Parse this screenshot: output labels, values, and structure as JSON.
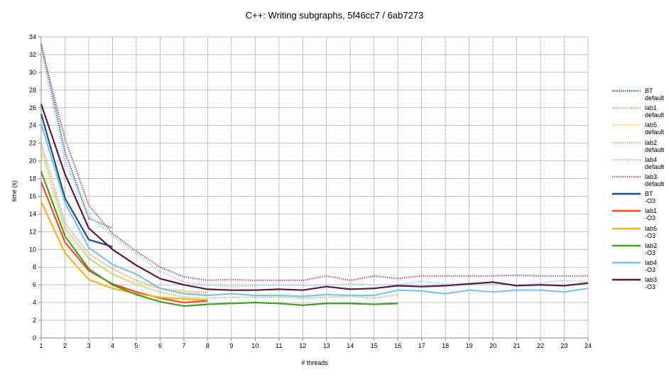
{
  "chart_data": {
    "type": "line",
    "title": "C++: Writing subgraphs, 5f46cc7 / 6ab7273",
    "xlabel": "# threads",
    "ylabel": "time (s)",
    "xlim": [
      1,
      24
    ],
    "ylim": [
      0,
      34
    ],
    "x_ticks": [
      1,
      2,
      3,
      4,
      5,
      6,
      7,
      8,
      9,
      10,
      11,
      12,
      13,
      14,
      15,
      16,
      17,
      18,
      19,
      20,
      21,
      22,
      23,
      24
    ],
    "y_ticks": [
      0,
      2,
      4,
      6,
      8,
      10,
      12,
      14,
      16,
      18,
      20,
      22,
      24,
      26,
      28,
      30,
      32,
      34
    ],
    "grid": true,
    "legend_position": "right",
    "series": [
      {
        "name_line1": "BT",
        "name_line2": "default",
        "color": "#4a6fa5",
        "style": "dotted",
        "x": [
          1,
          2,
          3,
          4
        ],
        "y": [
          33.2,
          21.0,
          13.5,
          12.4
        ]
      },
      {
        "name_line1": "lab1",
        "name_line2": "default",
        "color": "#f4a582",
        "style": "dotted",
        "x": [
          1,
          2,
          3,
          4,
          5,
          6,
          7,
          8
        ],
        "y": [
          22.0,
          13.0,
          9.5,
          7.8,
          6.5,
          5.6,
          5.3,
          5.1
        ]
      },
      {
        "name_line1": "lab5",
        "name_line2": "default",
        "color": "#f9d66a",
        "style": "dotted",
        "x": [
          1,
          2,
          3,
          4,
          5,
          6,
          7,
          8
        ],
        "y": [
          21.0,
          12.0,
          9.0,
          7.2,
          6.2,
          5.6,
          5.2,
          5.0
        ]
      },
      {
        "name_line1": "lab2",
        "name_line2": "default",
        "color": "#a6d18a",
        "style": "dotted",
        "x": [
          1,
          2,
          3,
          4,
          5,
          6,
          7,
          8,
          9,
          10,
          11,
          12,
          13,
          14,
          15,
          16
        ],
        "y": [
          21.5,
          12.5,
          9.0,
          7.2,
          6.0,
          5.2,
          4.6,
          4.5,
          4.6,
          4.6,
          4.6,
          4.5,
          4.6,
          4.7,
          4.5,
          4.9
        ]
      },
      {
        "name_line1": "lab4",
        "name_line2": "default",
        "color": "#a8d4f0",
        "style": "dotted",
        "x": [
          1,
          2,
          3,
          4,
          5,
          6,
          7,
          8,
          9,
          10,
          11,
          12,
          13,
          14,
          15,
          16,
          17,
          18,
          19,
          20,
          21,
          22,
          23,
          24
        ],
        "y": [
          32.5,
          20.0,
          13.8,
          11.5,
          9.5,
          7.5,
          6.3,
          6.0,
          5.8,
          5.9,
          6.0,
          5.9,
          6.0,
          6.1,
          6.0,
          6.0,
          6.4,
          6.1,
          6.2,
          6.1,
          6.0,
          6.2,
          6.5,
          6.3
        ]
      },
      {
        "name_line1": "lab3",
        "name_line2": "default",
        "color": "#b56576",
        "style": "dotted",
        "x": [
          1,
          2,
          3,
          4,
          5,
          6,
          7,
          8,
          9,
          10,
          11,
          12,
          13,
          14,
          15,
          16,
          17,
          18,
          19,
          20,
          21,
          22,
          23,
          24
        ],
        "y": [
          33.0,
          22.5,
          15.0,
          11.8,
          9.8,
          8.0,
          6.9,
          6.5,
          6.6,
          6.5,
          6.5,
          6.5,
          7.0,
          6.5,
          7.0,
          6.7,
          7.0,
          7.0,
          7.0,
          7.0,
          7.1,
          7.0,
          7.0,
          7.0
        ]
      },
      {
        "name_line1": "BT",
        "name_line2": "-O3",
        "color": "#1f4e89",
        "style": "solid",
        "x": [
          1,
          2,
          3,
          4
        ],
        "y": [
          25.3,
          15.8,
          11.1,
          10.3
        ]
      },
      {
        "name_line1": "lab1",
        "name_line2": "-O3",
        "color": "#f04e23",
        "style": "solid",
        "x": [
          1,
          2,
          3,
          4,
          5,
          6,
          7,
          8
        ],
        "y": [
          17.6,
          10.8,
          7.6,
          6.1,
          5.2,
          4.5,
          4.0,
          4.2
        ]
      },
      {
        "name_line1": "lab5",
        "name_line2": "-O3",
        "color": "#f2b824",
        "style": "solid",
        "x": [
          1,
          2,
          3,
          4,
          5,
          6,
          7,
          8
        ],
        "y": [
          15.4,
          9.6,
          6.6,
          5.6,
          5.0,
          4.6,
          4.4,
          4.3
        ]
      },
      {
        "name_line1": "lab2",
        "name_line2": "-O3",
        "color": "#4b9b2a",
        "style": "solid",
        "x": [
          1,
          2,
          3,
          4,
          5,
          6,
          7,
          8,
          9,
          10,
          11,
          12,
          13,
          14,
          15,
          16
        ],
        "y": [
          18.8,
          11.5,
          7.8,
          6.0,
          4.9,
          4.1,
          3.6,
          3.8,
          3.9,
          4.0,
          3.9,
          3.7,
          3.9,
          3.9,
          3.8,
          3.9
        ]
      },
      {
        "name_line1": "lab4",
        "name_line2": "-O3",
        "color": "#7ec4ea",
        "style": "solid",
        "x": [
          1,
          2,
          3,
          4,
          5,
          6,
          7,
          8,
          9,
          10,
          11,
          12,
          13,
          14,
          15,
          16,
          17,
          18,
          19,
          20,
          21,
          22,
          23,
          24
        ],
        "y": [
          24.2,
          15.3,
          10.2,
          8.3,
          7.2,
          5.6,
          5.0,
          4.8,
          5.0,
          4.8,
          4.8,
          4.7,
          4.9,
          4.8,
          4.8,
          5.4,
          5.3,
          5.0,
          5.4,
          5.2,
          5.4,
          5.4,
          5.2,
          5.6
        ]
      },
      {
        "name_line1": "lab3",
        "name_line2": "-O3",
        "color": "#5c1a3a",
        "style": "solid",
        "x": [
          1,
          2,
          3,
          4,
          5,
          6,
          7,
          8,
          9,
          10,
          11,
          12,
          13,
          14,
          15,
          16,
          17,
          18,
          19,
          20,
          21,
          22,
          23,
          24
        ],
        "y": [
          26.4,
          18.5,
          12.4,
          10.0,
          8.2,
          6.7,
          6.0,
          5.5,
          5.4,
          5.4,
          5.5,
          5.4,
          5.8,
          5.5,
          5.6,
          5.9,
          5.8,
          5.9,
          6.1,
          6.3,
          5.9,
          6.0,
          5.9,
          6.2
        ]
      }
    ]
  }
}
